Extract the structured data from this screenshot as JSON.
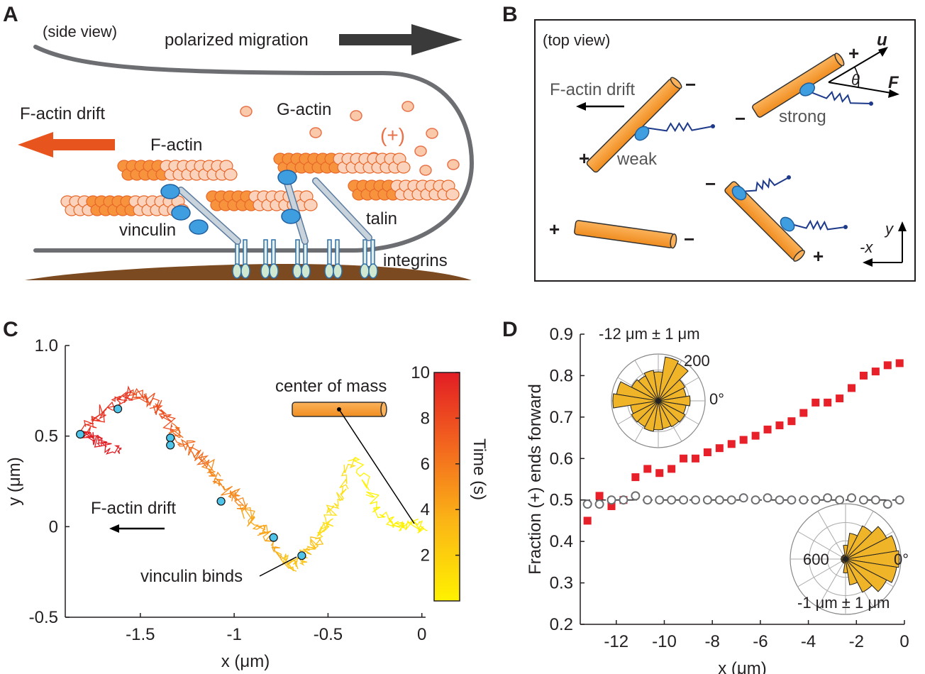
{
  "panels": {
    "A": {
      "letter": "A",
      "view": "(side view)",
      "migration": "polarized migration",
      "drift": "F-actin drift",
      "gactin": "G-actin",
      "plus": "(+)",
      "factin": "F-actin",
      "vinculin": "vinculin",
      "talin": "talin",
      "integrins": "integrins"
    },
    "B": {
      "letter": "B",
      "view": "(top view)",
      "drift": "F-actin drift",
      "weak": "weak",
      "strong": "strong",
      "u": "u",
      "F": "F",
      "theta": "θ",
      "plus": "+",
      "minus": "−",
      "ylab": "y",
      "xlab": "-x"
    },
    "C": {
      "letter": "C",
      "center_label": "center of mass",
      "drift": "F-actin drift",
      "binds": "vinculin binds",
      "colorbar_label": "Time (s)",
      "colorbar_ticks": [
        "2",
        "4",
        "6",
        "8",
        "10"
      ]
    },
    "D": {
      "letter": "D",
      "inset_top_label": "-12 μm ± 1 μm",
      "inset_top_tick": "200",
      "inset_top_zero": "0°",
      "inset_bot_label": "-1 μm ± 1 μm",
      "inset_bot_tick": "600",
      "inset_bot_zero": "0°"
    }
  },
  "chart_data": [
    {
      "panel": "C",
      "type": "line",
      "xlabel": "x (μm)",
      "ylabel": "y (μm)",
      "xlim": [
        -1.9,
        0.02
      ],
      "ylim": [
        -0.5,
        1.0
      ],
      "xticks": [
        "-1.5",
        "-1",
        "-0.5",
        "0"
      ],
      "xtick_values": [
        -1.5,
        -1,
        -0.5,
        0
      ],
      "yticks": [
        "-0.5",
        "0",
        "0.5",
        "1.0"
      ],
      "ytick_values": [
        -0.5,
        0,
        0.5,
        1.0
      ],
      "trajectory": [
        [
          0.03,
          -0.02
        ],
        [
          -0.05,
          0.02
        ],
        [
          -0.12,
          0.0
        ],
        [
          -0.2,
          0.05
        ],
        [
          -0.28,
          0.2
        ],
        [
          -0.36,
          0.38
        ],
        [
          -0.42,
          0.22
        ],
        [
          -0.48,
          0.1
        ],
        [
          -0.5,
          0.0
        ],
        [
          -0.55,
          -0.06
        ],
        [
          -0.6,
          -0.12
        ],
        [
          -0.65,
          -0.2
        ],
        [
          -0.7,
          -0.22
        ],
        [
          -0.75,
          -0.15
        ],
        [
          -0.8,
          -0.08
        ],
        [
          -0.85,
          -0.02
        ],
        [
          -0.9,
          0.04
        ],
        [
          -0.95,
          0.1
        ],
        [
          -1.0,
          0.17
        ],
        [
          -1.05,
          0.2
        ],
        [
          -1.1,
          0.28
        ],
        [
          -1.15,
          0.35
        ],
        [
          -1.2,
          0.4
        ],
        [
          -1.25,
          0.45
        ],
        [
          -1.3,
          0.5
        ],
        [
          -1.33,
          0.55
        ],
        [
          -1.38,
          0.62
        ],
        [
          -1.42,
          0.68
        ],
        [
          -1.48,
          0.72
        ],
        [
          -1.55,
          0.74
        ],
        [
          -1.6,
          0.7
        ],
        [
          -1.68,
          0.65
        ],
        [
          -1.75,
          0.58
        ],
        [
          -1.8,
          0.52
        ],
        [
          -1.75,
          0.48
        ],
        [
          -1.68,
          0.44
        ],
        [
          -1.62,
          0.42
        ]
      ],
      "vinculin_binds": [
        [
          -1.82,
          0.51
        ],
        [
          -1.62,
          0.65
        ],
        [
          -1.34,
          0.49
        ],
        [
          -1.34,
          0.45
        ],
        [
          -1.07,
          0.14
        ],
        [
          -0.79,
          -0.06
        ],
        [
          -0.64,
          -0.16
        ]
      ],
      "colorbar": {
        "min": 0,
        "max": 10
      }
    },
    {
      "panel": "D",
      "type": "scatter",
      "xlabel": "x (μm)",
      "ylabel": "Fraction (+) ends forward",
      "xlim": [
        -13.5,
        0
      ],
      "ylim": [
        0.2,
        0.9
      ],
      "xticks": [
        "-12",
        "-10",
        "-8",
        "-6",
        "-4",
        "-2",
        "0"
      ],
      "xtick_values": [
        -12,
        -10,
        -8,
        -6,
        -4,
        -2,
        0
      ],
      "yticks": [
        "0.2",
        "0.3",
        "0.4",
        "0.5",
        "0.6",
        "0.7",
        "0.8",
        "0.9"
      ],
      "ytick_values": [
        0.2,
        0.3,
        0.4,
        0.5,
        0.6,
        0.7,
        0.8,
        0.9
      ],
      "reference_line": 0.5,
      "series": [
        {
          "values": [
            [
              -13.2,
              0.45
            ],
            [
              -12.7,
              0.51
            ],
            [
              -12.2,
              0.485
            ],
            [
              -11.7,
              0.5
            ],
            [
              -11.2,
              0.555
            ],
            [
              -10.7,
              0.575
            ],
            [
              -10.2,
              0.565
            ],
            [
              -9.7,
              0.575
            ],
            [
              -9.2,
              0.6
            ],
            [
              -8.7,
              0.6
            ],
            [
              -8.2,
              0.615
            ],
            [
              -7.7,
              0.625
            ],
            [
              -7.2,
              0.635
            ],
            [
              -6.7,
              0.645
            ],
            [
              -6.2,
              0.655
            ],
            [
              -5.7,
              0.67
            ],
            [
              -5.2,
              0.68
            ],
            [
              -4.7,
              0.69
            ],
            [
              -4.2,
              0.71
            ],
            [
              -3.7,
              0.735
            ],
            [
              -3.2,
              0.735
            ],
            [
              -2.7,
              0.745
            ],
            [
              -2.2,
              0.77
            ],
            [
              -1.7,
              0.8
            ],
            [
              -1.2,
              0.81
            ],
            [
              -0.7,
              0.825
            ],
            [
              -0.2,
              0.83
            ]
          ],
          "color": "#e8202a",
          "marker": "square"
        },
        {
          "values": [
            [
              -13.2,
              0.49
            ],
            [
              -12.7,
              0.49
            ],
            [
              -12.2,
              0.5
            ],
            [
              -11.7,
              0.5
            ],
            [
              -11.2,
              0.51
            ],
            [
              -10.7,
              0.5
            ],
            [
              -10.2,
              0.5
            ],
            [
              -9.7,
              0.5
            ],
            [
              -9.2,
              0.5
            ],
            [
              -8.7,
              0.5
            ],
            [
              -8.2,
              0.5
            ],
            [
              -7.7,
              0.5
            ],
            [
              -7.2,
              0.5
            ],
            [
              -6.7,
              0.505
            ],
            [
              -6.2,
              0.5
            ],
            [
              -5.7,
              0.505
            ],
            [
              -5.2,
              0.5
            ],
            [
              -4.7,
              0.5
            ],
            [
              -4.2,
              0.5
            ],
            [
              -3.7,
              0.5
            ],
            [
              -3.2,
              0.505
            ],
            [
              -2.7,
              0.5
            ],
            [
              -2.2,
              0.505
            ],
            [
              -1.7,
              0.5
            ],
            [
              -1.2,
              0.5
            ],
            [
              -0.7,
              0.49
            ],
            [
              -0.2,
              0.5
            ]
          ],
          "color": "#6d6e71",
          "marker": "circle"
        }
      ]
    }
  ]
}
